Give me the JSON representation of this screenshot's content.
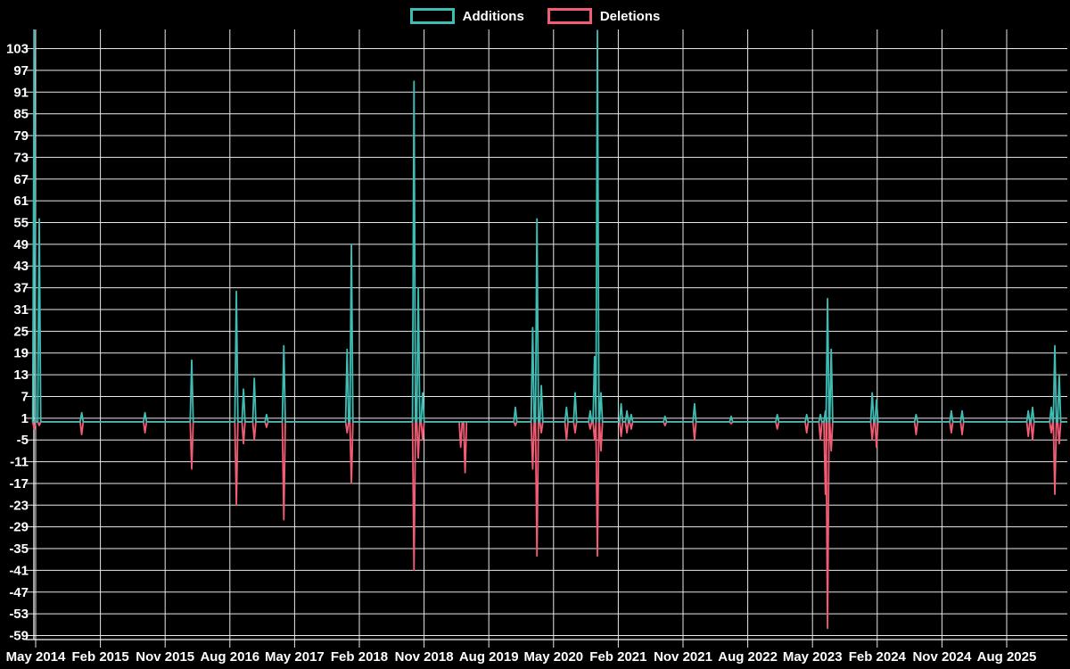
{
  "legend": {
    "additions_label": "Additions",
    "deletions_label": "Deletions"
  },
  "colors": {
    "background": "#000000",
    "additions": "#3fbdb5",
    "deletions": "#f25c75",
    "grid": "#e8e8e8",
    "axis": "#f5f5f5",
    "tick_text": "#ffffff"
  },
  "chart_data": {
    "type": "line",
    "title": "",
    "xlabel": "",
    "ylabel": "",
    "grid": true,
    "legend_position": "top-center",
    "ylim": [
      -60.1,
      108.3
    ],
    "y_ticks": [
      103,
      97,
      91,
      85,
      79,
      73,
      67,
      61,
      55,
      49,
      43,
      37,
      31,
      25,
      19,
      13,
      7,
      1,
      -5,
      -11,
      -17,
      -23,
      -29,
      -35,
      -41,
      -47,
      -53,
      -59
    ],
    "x_tick_labels": [
      "May 2014",
      "Feb 2015",
      "Nov 2015",
      "Aug 2016",
      "May 2017",
      "Feb 2018",
      "Nov 2018",
      "Aug 2019",
      "May 2020",
      "Feb 2021",
      "Nov 2021",
      "Aug 2022",
      "May 2023",
      "Feb 2024",
      "Nov 2024",
      "Aug 2025"
    ],
    "x_tick_interval_months": 9,
    "series_names": [
      "Additions",
      "Deletions"
    ],
    "t_unit": "months since May 2014; additions positive, deletions negative; values of 108 are spikes clipped at the top of the plot (> 103)",
    "points": [
      {
        "t": -0.2,
        "add": 108,
        "del": -2
      },
      {
        "t": 0.5,
        "add": 56,
        "del": -1
      },
      {
        "t": 6.4,
        "add": 2.5,
        "del": -3.5
      },
      {
        "t": 15.2,
        "add": 2.5,
        "del": -3
      },
      {
        "t": 21.7,
        "add": 17,
        "del": -13
      },
      {
        "t": 27.9,
        "add": 36,
        "del": -23
      },
      {
        "t": 28.9,
        "add": 9,
        "del": -6
      },
      {
        "t": 30.4,
        "add": 12,
        "del": -5
      },
      {
        "t": 32.1,
        "add": 2,
        "del": -1.5
      },
      {
        "t": 34.5,
        "add": 21,
        "del": -27
      },
      {
        "t": 43.3,
        "add": 20,
        "del": -3
      },
      {
        "t": 43.9,
        "add": 49,
        "del": -17
      },
      {
        "t": 52.6,
        "add": 94,
        "del": -41
      },
      {
        "t": 53.2,
        "add": 37,
        "del": -10
      },
      {
        "t": 53.8,
        "add": 8,
        "del": -5
      },
      {
        "t": 59.1,
        "add": 0,
        "del": -7
      },
      {
        "t": 59.7,
        "add": 0,
        "del": -14
      },
      {
        "t": 66.7,
        "add": 4,
        "del": -1
      },
      {
        "t": 69.1,
        "add": 26,
        "del": -13
      },
      {
        "t": 69.7,
        "add": 56,
        "del": -37
      },
      {
        "t": 70.3,
        "add": 10,
        "del": -3
      },
      {
        "t": 73.8,
        "add": 4,
        "del": -5
      },
      {
        "t": 75.0,
        "add": 8,
        "del": -3
      },
      {
        "t": 77.1,
        "add": 3,
        "del": -2
      },
      {
        "t": 77.7,
        "add": 18,
        "del": -5
      },
      {
        "t": 78.1,
        "add": 108,
        "del": -37
      },
      {
        "t": 78.6,
        "add": 8,
        "del": -8
      },
      {
        "t": 81.4,
        "add": 5,
        "del": -4
      },
      {
        "t": 82.2,
        "add": 3,
        "del": -3
      },
      {
        "t": 82.8,
        "add": 2,
        "del": -2
      },
      {
        "t": 87.5,
        "add": 1.5,
        "del": -1
      },
      {
        "t": 91.6,
        "add": 5,
        "del": -5
      },
      {
        "t": 96.7,
        "add": 1.5,
        "del": -0.5
      },
      {
        "t": 103.1,
        "add": 2,
        "del": -2
      },
      {
        "t": 107.2,
        "add": 2,
        "del": -3
      },
      {
        "t": 109.1,
        "add": 2,
        "del": -5
      },
      {
        "t": 109.8,
        "add": 3,
        "del": -20
      },
      {
        "t": 110.1,
        "add": 34,
        "del": -57
      },
      {
        "t": 110.6,
        "add": 20,
        "del": -8
      },
      {
        "t": 116.3,
        "add": 8,
        "del": -5
      },
      {
        "t": 116.9,
        "add": 6,
        "del": -7
      },
      {
        "t": 122.4,
        "add": 2,
        "del": -3.5
      },
      {
        "t": 127.3,
        "add": 3,
        "del": -3
      },
      {
        "t": 128.8,
        "add": 3,
        "del": -3.5
      },
      {
        "t": 138.0,
        "add": 3,
        "del": -4
      },
      {
        "t": 138.6,
        "add": 4,
        "del": -5
      },
      {
        "t": 141.2,
        "add": 4,
        "del": -3
      },
      {
        "t": 141.7,
        "add": 21,
        "del": -20
      },
      {
        "t": 142.3,
        "add": 13,
        "del": -6
      }
    ]
  }
}
